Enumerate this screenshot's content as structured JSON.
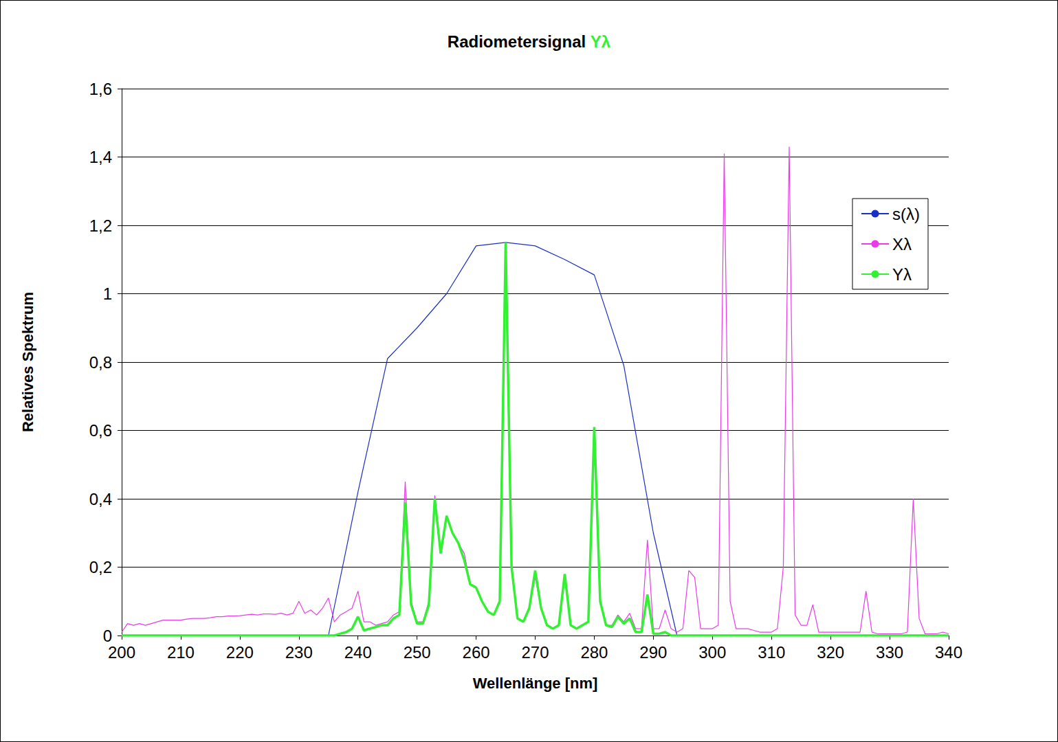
{
  "chart_data": {
    "type": "line",
    "title": "Radiometersignal Yλ",
    "x_label": "Wellenlänge [nm]",
    "y_label": "Relatives Spektrum",
    "xlim": [
      200,
      340
    ],
    "xticks": [
      200,
      210,
      220,
      230,
      240,
      250,
      260,
      270,
      280,
      290,
      300,
      310,
      320,
      330,
      340
    ],
    "ylim": [
      0,
      1.6
    ],
    "yticks": [
      0,
      {
        "value": 0.2,
        "label": "0,2"
      },
      {
        "value": 0.4,
        "label": "0,4"
      },
      {
        "value": 0.6,
        "label": "0,6"
      },
      {
        "value": 0.8,
        "label": "0,8"
      },
      1,
      {
        "value": 1.2,
        "label": "1,2"
      },
      {
        "value": 1.4,
        "label": "1,4"
      },
      {
        "value": 1.6,
        "label": "1,6"
      }
    ],
    "grid": "y",
    "legend": "right",
    "x": [
      200,
      201,
      202,
      203,
      204,
      205,
      206,
      207,
      208,
      209,
      210,
      211,
      212,
      213,
      214,
      215,
      216,
      217,
      218,
      219,
      220,
      221,
      222,
      223,
      224,
      225,
      226,
      227,
      228,
      229,
      230,
      231,
      232,
      233,
      234,
      235,
      236,
      237,
      238,
      239,
      240,
      241,
      242,
      243,
      244,
      245,
      246,
      247,
      248,
      249,
      250,
      251,
      252,
      253,
      254,
      255,
      256,
      257,
      258,
      259,
      260,
      261,
      262,
      263,
      264,
      265,
      266,
      267,
      268,
      269,
      270,
      271,
      272,
      273,
      274,
      275,
      276,
      277,
      278,
      279,
      280,
      281,
      282,
      283,
      284,
      285,
      286,
      287,
      288,
      289,
      290,
      291,
      292,
      293,
      294,
      295,
      296,
      297,
      298,
      299,
      300,
      301,
      302,
      303,
      304,
      305,
      306,
      307,
      308,
      309,
      310,
      311,
      312,
      313,
      314,
      315,
      316,
      317,
      318,
      319,
      320,
      321,
      322,
      323,
      324,
      325,
      326,
      327,
      328,
      329,
      330,
      331,
      332,
      333,
      334,
      335,
      336,
      337,
      338,
      339,
      340
    ],
    "series": [
      {
        "name": "s(λ)",
        "color": "#1a2fc4",
        "x": [
          235,
          240,
          245,
          250,
          255,
          260,
          265,
          270,
          275,
          280,
          282,
          285,
          290,
          294
        ],
        "values": [
          0,
          0.42,
          0.81,
          0.9,
          1.0,
          1.14,
          1.15,
          1.14,
          1.1,
          1.055,
          0.95,
          0.79,
          0.3,
          0
        ]
      },
      {
        "name": "Xλ",
        "color": "#e83ce8",
        "values": [
          0.01,
          0.035,
          0.03,
          0.035,
          0.03,
          0.035,
          0.04,
          0.045,
          0.045,
          0.045,
          0.045,
          0.048,
          0.05,
          0.05,
          0.05,
          0.052,
          0.055,
          0.055,
          0.057,
          0.057,
          0.058,
          0.06,
          0.062,
          0.06,
          0.063,
          0.063,
          0.062,
          0.065,
          0.06,
          0.065,
          0.1,
          0.065,
          0.075,
          0.06,
          0.08,
          0.11,
          0.04,
          0.06,
          0.07,
          0.08,
          0.13,
          0.04,
          0.04,
          0.03,
          0.035,
          0.04,
          0.06,
          0.07,
          0.45,
          0.1,
          0.04,
          0.04,
          0.1,
          0.41,
          0.24,
          0.35,
          0.3,
          0.27,
          0.24,
          0.15,
          0.14,
          0.1,
          0.07,
          0.06,
          0.1,
          1.15,
          0.2,
          0.05,
          0.04,
          0.08,
          0.17,
          0.08,
          0.03,
          0.02,
          0.03,
          0.17,
          0.03,
          0.02,
          0.03,
          0.04,
          0.6,
          0.1,
          0.03,
          0.03,
          0.06,
          0.04,
          0.065,
          0.02,
          0.02,
          0.28,
          0.02,
          0.02,
          0.075,
          0.02,
          0.01,
          0.02,
          0.19,
          0.17,
          0.02,
          0.02,
          0.02,
          0.03,
          1.41,
          0.1,
          0.02,
          0.02,
          0.02,
          0.015,
          0.01,
          0.01,
          0.01,
          0.02,
          0.2,
          1.43,
          0.06,
          0.03,
          0.03,
          0.09,
          0.01,
          0.01,
          0.01,
          0.01,
          0.01,
          0.01,
          0.01,
          0.01,
          0.13,
          0.01,
          0.005,
          0.005,
          0.005,
          0.005,
          0.005,
          0.01,
          0.4,
          0.05,
          0.005,
          0.005,
          0.005,
          0.01,
          0.005
        ]
      },
      {
        "name": "Yλ",
        "color": "#33f033",
        "values": [
          0,
          0,
          0,
          0,
          0,
          0,
          0,
          0,
          0,
          0,
          0,
          0,
          0,
          0,
          0,
          0,
          0,
          0,
          0,
          0,
          0,
          0,
          0,
          0,
          0,
          0,
          0,
          0,
          0,
          0,
          0,
          0,
          0,
          0,
          0,
          0,
          0,
          0.005,
          0.01,
          0.02,
          0.055,
          0.015,
          0.02,
          0.025,
          0.03,
          0.03,
          0.05,
          0.06,
          0.39,
          0.09,
          0.035,
          0.035,
          0.09,
          0.4,
          0.24,
          0.35,
          0.3,
          0.27,
          0.22,
          0.15,
          0.14,
          0.1,
          0.07,
          0.06,
          0.1,
          1.15,
          0.2,
          0.05,
          0.04,
          0.08,
          0.19,
          0.08,
          0.03,
          0.02,
          0.03,
          0.18,
          0.03,
          0.02,
          0.03,
          0.04,
          0.61,
          0.1,
          0.03,
          0.025,
          0.055,
          0.035,
          0.05,
          0.01,
          0.01,
          0.12,
          0.005,
          0.005,
          0.01,
          0,
          0,
          0,
          0,
          0,
          0,
          0,
          0,
          0,
          0,
          0,
          0,
          0,
          0,
          0,
          0,
          0,
          0,
          0,
          0,
          0,
          0,
          0,
          0,
          0,
          0,
          0,
          0,
          0,
          0,
          0,
          0,
          0,
          0,
          0,
          0,
          0,
          0,
          0,
          0,
          0,
          0,
          0,
          0,
          0,
          0,
          0,
          0
        ]
      }
    ]
  }
}
